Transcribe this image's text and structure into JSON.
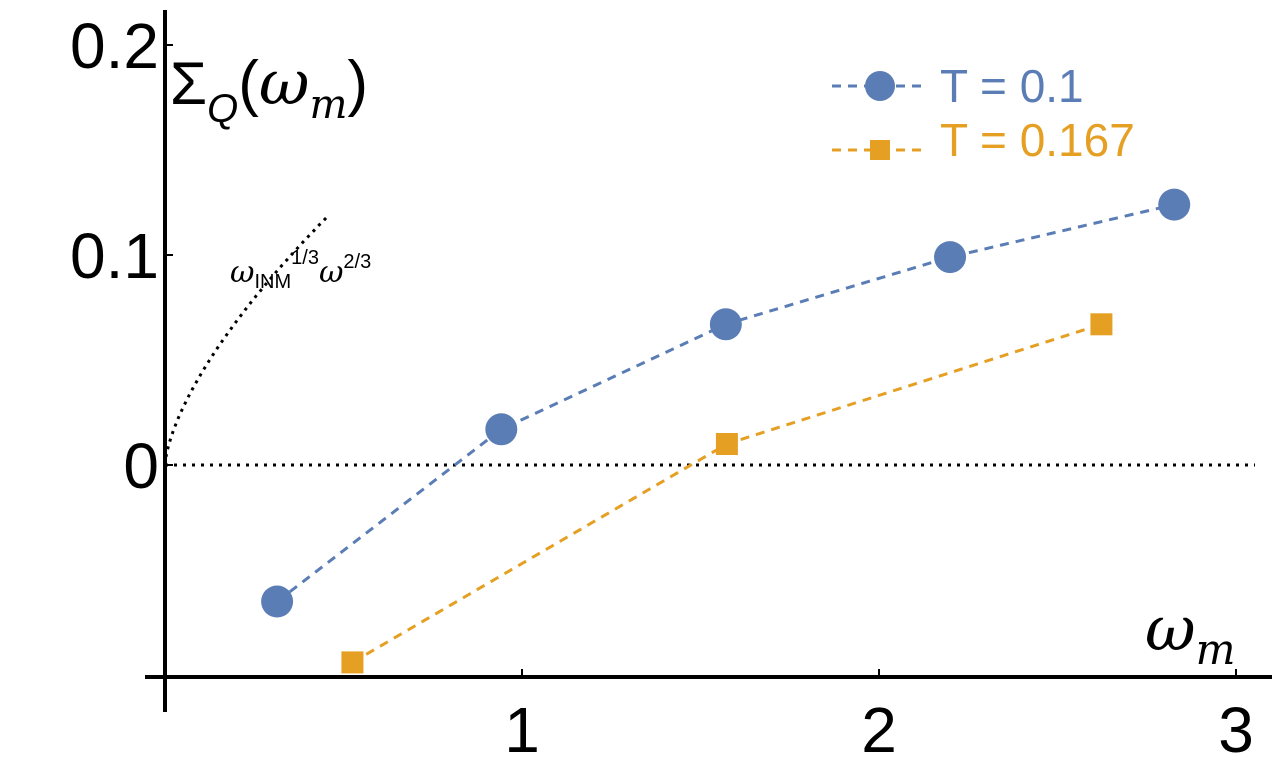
{
  "chart_data": {
    "type": "scatter",
    "title": "",
    "xlabel": "ω",
    "xlabel_sub": "m",
    "ylabel_main": "Σ",
    "ylabel_sub": "Q",
    "ylabel_paren_open": "(",
    "ylabel_omega": "ω",
    "ylabel_omega_sub": "m",
    "ylabel_paren_close": ")",
    "xlim": [
      0,
      3
    ],
    "ylim": [
      -0.1,
      0.21
    ],
    "xticks": [
      {
        "value": 1,
        "label": "1"
      },
      {
        "value": 2,
        "label": "2"
      },
      {
        "value": 3,
        "label": "3"
      }
    ],
    "yticks": [
      {
        "value": 0,
        "label": "0"
      },
      {
        "value": 0.1,
        "label": "0.1"
      },
      {
        "value": 0.2,
        "label": "0.2"
      }
    ],
    "grid": false,
    "legend_position": "top-right",
    "series": [
      {
        "name": "T = 0.1",
        "color": "#5b7db5",
        "marker": "circle",
        "line": "dashed",
        "x": [
          0.314,
          0.942,
          1.571,
          2.199,
          2.827
        ],
        "y": [
          -0.065,
          0.017,
          0.067,
          0.099,
          0.124
        ]
      },
      {
        "name": "T = 0.167",
        "color": "#e5a024",
        "marker": "square",
        "line": "dashed",
        "x": [
          0.525,
          1.574,
          2.623
        ],
        "y": [
          -0.094,
          0.01,
          0.067
        ]
      }
    ],
    "annotation": {
      "base": "ω",
      "sub": "INM",
      "sup1": "1/3",
      "base2": "ω",
      "sup2": "2/3",
      "description": "dotted reference curve"
    },
    "reference_curve": {
      "style": "dotted",
      "color": "#000000",
      "prefactor": 0.2,
      "exponent": 0.6667
    },
    "zero_line": {
      "value": 0,
      "style": "dotted"
    }
  }
}
